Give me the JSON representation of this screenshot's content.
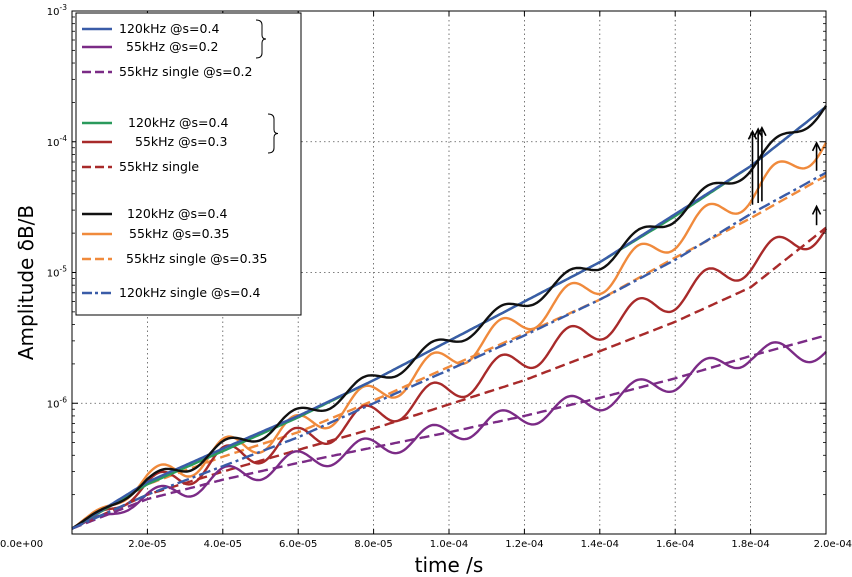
{
  "chart_data": {
    "type": "line",
    "title": "",
    "xlabel": "time /s",
    "ylabel": "Amplitude δB/B",
    "xlim": [
      0,
      0.0002
    ],
    "ylim": [
      1e-07,
      0.001
    ],
    "yscale": "log",
    "grid": true,
    "legend_position": "top-left",
    "x_tick_labels": [
      "0.0e+00",
      "2.0e-05",
      "4.0e-05",
      "6.0e-05",
      "8.0e-05",
      "1.0e-04",
      "1.2e-04",
      "1.4e-04",
      "1.6e-04",
      "1.8e-04",
      "2.0e-04"
    ],
    "y_ticks": [
      {
        "value": 0.001,
        "base": "10",
        "exp": "-3"
      },
      {
        "value": 0.0001,
        "base": "10",
        "exp": "-4"
      },
      {
        "value": 1e-05,
        "base": "10",
        "exp": "-5"
      },
      {
        "value": 1e-06,
        "base": "10",
        "exp": "-6"
      }
    ],
    "x": [
      0,
      2e-05,
      4e-05,
      6e-05,
      8e-05,
      0.0001,
      0.00012,
      0.00014,
      0.00016,
      0.00018,
      0.0002
    ],
    "series": [
      {
        "name": "120kHz @s=0.4",
        "color": "#3a5ca8",
        "dash": "solid",
        "osc": 0,
        "values": [
          1.1e-07,
          2.5e-07,
          4.5e-07,
          8e-07,
          1.5e-06,
          3e-06,
          6e-06,
          1.2e-05,
          2.8e-05,
          6.5e-05,
          0.000185
        ]
      },
      {
        "name": "55kHz @s=0.2",
        "color": "#7b2b86",
        "dash": "solid",
        "osc": 0.08,
        "values": [
          1.1e-07,
          1.9e-07,
          2.7e-07,
          3.6e-07,
          4.6e-07,
          6e-07,
          8e-07,
          1.05e-06,
          1.5e-06,
          2.4e-06,
          2.5e-06
        ]
      },
      {
        "name": "55kHz single",
        "label_suffix": "@s=0.2",
        "color": "#7b2b86",
        "dash": "dashed",
        "osc": 0,
        "values": [
          1.1e-07,
          1.85e-07,
          2.6e-07,
          3.5e-07,
          4.6e-07,
          6e-07,
          8e-07,
          1.1e-06,
          1.55e-06,
          2.3e-06,
          3.3e-06
        ]
      },
      {
        "name": "120kHz @s=0.4",
        "color": "#2a9a5c",
        "dash": "solid",
        "osc": 0,
        "values": [
          1.1e-07,
          2.4e-07,
          4.3e-07,
          7.8e-07,
          1.5e-06,
          3e-06,
          6e-06,
          1.2e-05,
          2.7e-05,
          6.5e-05,
          0.000185
        ]
      },
      {
        "name": "55kHz @s=0.3",
        "color": "#a82a2a",
        "dash": "solid",
        "osc": 0.1,
        "values": [
          1.1e-07,
          2.3e-07,
          3.7e-07,
          5.2e-07,
          8e-07,
          1.25e-06,
          2.2e-06,
          3.8e-06,
          6.5e-06,
          1.2e-05,
          2.2e-05
        ]
      },
      {
        "name": "55kHz single",
        "label_suffix": "",
        "color": "#a82a2a",
        "dash": "dashed",
        "osc": 0,
        "values": [
          1.1e-07,
          2e-07,
          3e-07,
          4.4e-07,
          6.4e-07,
          9.8e-07,
          1.5e-06,
          2.5e-06,
          4.2e-06,
          7.7e-06,
          2.2e-05
        ]
      },
      {
        "name": "120kHz @s=0.4",
        "color": "#111111",
        "dash": "solid",
        "osc": 0.06,
        "values": [
          1.1e-07,
          2.5e-07,
          4.5e-07,
          8e-07,
          1.5e-06,
          3e-06,
          6e-06,
          1.2e-05,
          2.8e-05,
          6.5e-05,
          0.00019
        ]
      },
      {
        "name": "55kHz @s=0.35",
        "color": "#f08a3c",
        "dash": "solid",
        "osc": 0.1,
        "values": [
          1.1e-07,
          2.6e-07,
          4.3e-07,
          6.5e-07,
          1.15e-06,
          2.2e-06,
          4.3e-06,
          8.5e-06,
          1.9e-05,
          4e-05,
          0.0001
        ]
      },
      {
        "name": "55kHz single",
        "label_suffix": "@s=0.35",
        "color": "#f08a3c",
        "dash": "dashed",
        "osc": 0,
        "values": [
          1.1e-07,
          2.4e-07,
          3.9e-07,
          6e-07,
          1.05e-06,
          1.9e-06,
          3.4e-06,
          6.2e-06,
          1.3e-05,
          2.6e-05,
          5.5e-05
        ]
      },
      {
        "name": "120kHz single",
        "label_suffix": "@s=0.4",
        "color": "#3a5ca8",
        "dash": "dashdot",
        "osc": 0,
        "values": [
          1.1e-07,
          2e-07,
          3.3e-07,
          5.5e-07,
          1e-06,
          1.8e-06,
          3.3e-06,
          6.2e-06,
          1.25e-05,
          2.8e-05,
          5.8e-05
        ]
      }
    ],
    "legend_groups": [
      {
        "series": [
          0,
          1,
          2
        ],
        "brace_on": [
          0,
          1
        ]
      },
      {
        "series": [
          3,
          4,
          5
        ],
        "brace_on": [
          3,
          4
        ]
      },
      {
        "series": [
          6,
          7,
          8,
          9
        ],
        "brace_on": []
      }
    ],
    "arrows": [
      {
        "x": 0.0001805,
        "from": 3.3e-05,
        "to": 0.00012
      },
      {
        "x": 0.000182,
        "from": 3.4e-05,
        "to": 0.000125
      },
      {
        "x": 0.000183,
        "from": 3.5e-05,
        "to": 0.000128
      },
      {
        "x": 0.0001975,
        "from": 6e-05,
        "to": 9.8e-05
      },
      {
        "x": 0.0001975,
        "from": 2.3e-05,
        "to": 3.2e-05
      }
    ]
  }
}
